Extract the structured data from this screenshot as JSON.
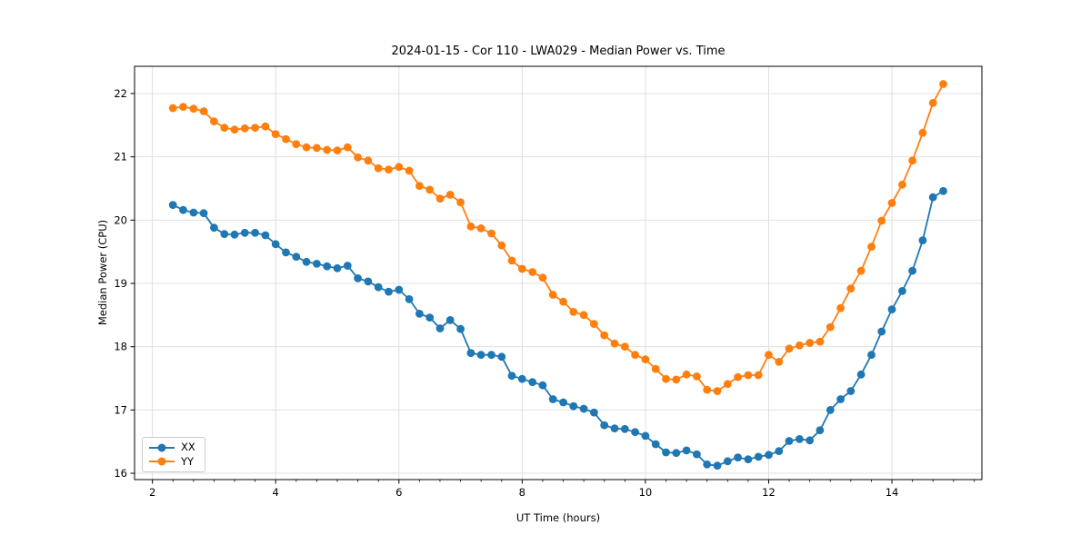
{
  "chart_data": {
    "type": "line",
    "title": "2024-01-15 - Cor 110 - LWA029 - Median Power vs. Time",
    "xlabel": "UT Time (hours)",
    "ylabel": "Median Power (CPU)",
    "xlim": [
      1.71,
      15.46
    ],
    "ylim": [
      15.9,
      22.43
    ],
    "x_ticks": [
      2,
      4,
      6,
      8,
      10,
      12,
      14
    ],
    "y_ticks": [
      16,
      17,
      18,
      19,
      20,
      21,
      22
    ],
    "x_minor_step": 0.33333,
    "grid": true,
    "grid_color": "#e0e0e0",
    "spine_color": "#000000",
    "legend_position": "lower left",
    "marker": "o",
    "x": [
      2.333,
      2.5,
      2.667,
      2.833,
      3.0,
      3.167,
      3.333,
      3.5,
      3.667,
      3.833,
      4.0,
      4.167,
      4.333,
      4.5,
      4.667,
      4.833,
      5.0,
      5.167,
      5.333,
      5.5,
      5.667,
      5.833,
      6.0,
      6.167,
      6.333,
      6.5,
      6.667,
      6.833,
      7.0,
      7.167,
      7.333,
      7.5,
      7.667,
      7.833,
      8.0,
      8.167,
      8.333,
      8.5,
      8.667,
      8.833,
      9.0,
      9.167,
      9.333,
      9.5,
      9.667,
      9.833,
      10.0,
      10.167,
      10.333,
      10.5,
      10.667,
      10.833,
      11.0,
      11.167,
      11.333,
      11.5,
      11.667,
      11.833,
      12.0,
      12.167,
      12.333,
      12.5,
      12.667,
      12.833,
      13.0,
      13.167,
      13.333,
      13.5,
      13.667,
      13.833,
      14.0,
      14.167,
      14.333,
      14.5,
      14.667,
      14.833
    ],
    "series": [
      {
        "name": "XX",
        "color": "#1f77b4",
        "values": [
          20.24,
          20.16,
          20.12,
          20.11,
          19.88,
          19.78,
          19.77,
          19.8,
          19.8,
          19.76,
          19.62,
          19.49,
          19.42,
          19.34,
          19.31,
          19.27,
          19.24,
          19.28,
          19.08,
          19.03,
          18.94,
          18.87,
          18.9,
          18.75,
          18.52,
          18.46,
          18.29,
          18.42,
          18.28,
          17.9,
          17.87,
          17.87,
          17.84,
          17.54,
          17.49,
          17.44,
          17.39,
          17.17,
          17.12,
          17.06,
          17.02,
          16.96,
          16.76,
          16.71,
          16.7,
          16.65,
          16.59,
          16.46,
          16.33,
          16.32,
          16.36,
          16.3,
          16.14,
          16.12,
          16.19,
          16.25,
          16.22,
          16.26,
          16.29,
          16.35,
          16.51,
          16.54,
          16.52,
          16.68,
          17.0,
          17.17,
          17.3,
          17.56,
          17.87,
          18.24,
          18.59,
          18.88,
          19.2,
          19.68,
          20.36,
          20.46
        ]
      },
      {
        "name": "YY",
        "color": "#ff7f0e",
        "values": [
          21.77,
          21.79,
          21.76,
          21.72,
          21.56,
          21.46,
          21.43,
          21.45,
          21.46,
          21.48,
          21.36,
          21.28,
          21.2,
          21.15,
          21.14,
          21.11,
          21.1,
          21.15,
          20.99,
          20.94,
          20.82,
          20.8,
          20.84,
          20.78,
          20.54,
          20.48,
          20.34,
          20.4,
          20.28,
          19.9,
          19.87,
          19.79,
          19.6,
          19.36,
          19.23,
          19.18,
          19.09,
          18.82,
          18.71,
          18.55,
          18.5,
          18.36,
          18.18,
          18.05,
          18.0,
          17.87,
          17.8,
          17.65,
          17.49,
          17.48,
          17.56,
          17.53,
          17.32,
          17.3,
          17.41,
          17.52,
          17.55,
          17.55,
          17.87,
          17.76,
          17.97,
          18.02,
          18.06,
          18.08,
          18.31,
          18.61,
          18.92,
          19.2,
          19.58,
          19.99,
          20.27,
          20.56,
          20.94,
          21.38,
          21.85,
          22.15
        ]
      }
    ]
  }
}
